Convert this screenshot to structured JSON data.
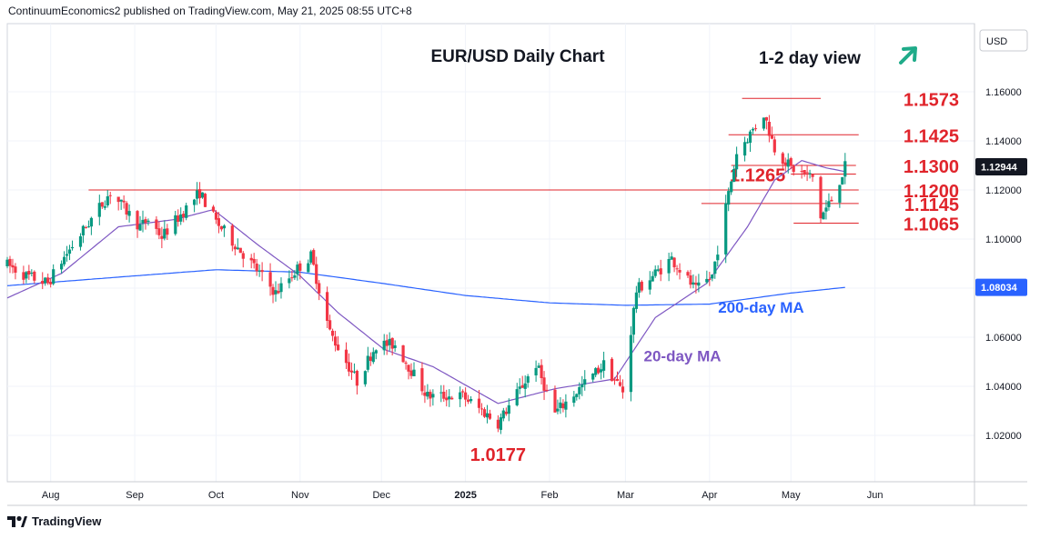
{
  "attribution": "ContinuumEconomics2 published on TradingView.com, May 21, 2025 08:55 UTC+8",
  "footer": {
    "brand": "TradingView"
  },
  "currency": "USD",
  "colors": {
    "up": "#089981",
    "down": "#f23645",
    "ma20": "#7e57c2",
    "ma200": "#2962ff",
    "level": "#e0242b",
    "arrow": "#1fab89",
    "priceTag": "#131722",
    "maTag": "#2962ff"
  },
  "chart_data": {
    "type": "candlestick",
    "title": "EUR/USD Daily Chart",
    "view_label": "1-2 day view",
    "view_direction": "up",
    "ylim": [
      1.0,
      1.17
    ],
    "xlim": [
      "2025-07-16",
      "2025-06-16"
    ],
    "y_ticks": [
      "1.16000",
      "1.14000",
      "1.12000",
      "1.10000",
      "1.08000",
      "1.06000",
      "1.04000",
      "1.02000"
    ],
    "x_ticks": [
      {
        "label": "Aug",
        "date": "2024-08-01"
      },
      {
        "label": "Sep",
        "date": "2024-09-01"
      },
      {
        "label": "Oct",
        "date": "2024-10-01"
      },
      {
        "label": "Nov",
        "date": "2024-11-01"
      },
      {
        "label": "Dec",
        "date": "2024-12-01"
      },
      {
        "label": "2025",
        "date": "2025-01-01",
        "bold": true
      },
      {
        "label": "Feb",
        "date": "2025-02-01"
      },
      {
        "label": "Mar",
        "date": "2025-03-01"
      },
      {
        "label": "Apr",
        "date": "2025-04-01"
      },
      {
        "label": "May",
        "date": "2025-05-01"
      },
      {
        "label": "Jun",
        "date": "2025-06-01"
      }
    ],
    "current_price": {
      "label": "1.12944",
      "value": 1.12944
    },
    "ma200_tag": {
      "label": "1.08034",
      "value": 1.08034
    },
    "price_anchors": [
      [
        "2024-07-16",
        1.0895
      ],
      [
        "2024-07-23",
        1.085
      ],
      [
        "2024-07-31",
        1.082
      ],
      [
        "2024-08-05",
        1.091
      ],
      [
        "2024-08-23",
        1.119
      ],
      [
        "2024-09-03",
        1.105
      ],
      [
        "2024-09-06",
        1.108
      ],
      [
        "2024-09-11",
        1.101
      ],
      [
        "2024-09-25",
        1.119
      ],
      [
        "2024-10-01",
        1.107
      ],
      [
        "2024-10-11",
        1.094
      ],
      [
        "2024-10-23",
        1.078
      ],
      [
        "2024-10-31",
        1.088
      ],
      [
        "2024-11-05",
        1.093
      ],
      [
        "2024-11-12",
        1.062
      ],
      [
        "2024-11-22",
        1.042
      ],
      [
        "2024-11-29",
        1.057
      ],
      [
        "2024-12-06",
        1.057
      ],
      [
        "2024-12-18",
        1.036
      ],
      [
        "2024-12-31",
        1.036
      ],
      [
        "2025-01-13",
        1.025
      ],
      [
        "2025-01-27",
        1.049
      ],
      [
        "2025-02-03",
        1.029
      ],
      [
        "2025-02-21",
        1.049
      ],
      [
        "2025-02-28",
        1.038
      ],
      [
        "2025-03-05",
        1.079
      ],
      [
        "2025-03-18",
        1.092
      ],
      [
        "2025-03-27",
        1.079
      ],
      [
        "2025-04-02",
        1.085
      ],
      [
        "2025-04-11",
        1.135
      ],
      [
        "2025-04-21",
        1.151
      ],
      [
        "2025-04-25",
        1.137
      ],
      [
        "2025-05-01",
        1.129
      ],
      [
        "2025-05-09",
        1.125
      ],
      [
        "2025-05-12",
        1.109
      ],
      [
        "2025-05-16",
        1.116
      ],
      [
        "2025-05-21",
        1.1294
      ]
    ],
    "ma20_anchors": [
      [
        "2024-07-16",
        1.076
      ],
      [
        "2024-08-05",
        1.086
      ],
      [
        "2024-08-26",
        1.105
      ],
      [
        "2024-09-16",
        1.108
      ],
      [
        "2024-09-30",
        1.112
      ],
      [
        "2024-10-16",
        1.098
      ],
      [
        "2024-11-01",
        1.085
      ],
      [
        "2024-11-15",
        1.07
      ],
      [
        "2024-12-02",
        1.055
      ],
      [
        "2024-12-20",
        1.048
      ],
      [
        "2025-01-13",
        1.033
      ],
      [
        "2025-02-03",
        1.039
      ],
      [
        "2025-02-25",
        1.043
      ],
      [
        "2025-03-12",
        1.068
      ],
      [
        "2025-03-31",
        1.082
      ],
      [
        "2025-04-15",
        1.105
      ],
      [
        "2025-04-25",
        1.124
      ],
      [
        "2025-05-05",
        1.132
      ],
      [
        "2025-05-14",
        1.129
      ],
      [
        "2025-05-21",
        1.1275
      ]
    ],
    "ma200_anchors": [
      [
        "2024-07-16",
        1.081
      ],
      [
        "2024-09-01",
        1.085
      ],
      [
        "2024-10-01",
        1.0875
      ],
      [
        "2024-11-01",
        1.0865
      ],
      [
        "2024-12-01",
        1.082
      ],
      [
        "2025-01-01",
        1.077
      ],
      [
        "2025-02-01",
        1.074
      ],
      [
        "2025-03-01",
        1.073
      ],
      [
        "2025-04-01",
        1.0735
      ],
      [
        "2025-05-01",
        1.078
      ],
      [
        "2025-05-21",
        1.0803
      ]
    ],
    "levels": [
      {
        "label": "1.1573",
        "value": 1.1573,
        "from": "2025-04-13",
        "to": "2025-05-12",
        "label_side": "right"
      },
      {
        "label": "1.1425",
        "value": 1.1425,
        "from": "2025-04-08",
        "to": "2025-05-26",
        "label_side": "right"
      },
      {
        "label": "1.1300",
        "value": 1.13,
        "from": "2025-04-09",
        "to": "2025-05-25",
        "label_side": "right"
      },
      {
        "label": "1.1265",
        "value": 1.1265,
        "from": "2025-05-01",
        "to": "2025-05-25",
        "label_side": "left"
      },
      {
        "label": "1.1200",
        "value": 1.12,
        "from": "2024-08-15",
        "to": "2025-05-26",
        "label_side": "right"
      },
      {
        "label": "1.1145",
        "value": 1.1145,
        "from": "2025-03-29",
        "to": "2025-05-26",
        "label_side": "right"
      },
      {
        "label": "1.1065",
        "value": 1.1065,
        "from": "2025-05-02",
        "to": "2025-05-26",
        "label_side": "right"
      }
    ],
    "annotations": [
      {
        "text": "1.0177",
        "date": "2025-01-13",
        "value": 1.0177,
        "color": "#e0242b"
      },
      {
        "text": "20-day MA",
        "date": "2025-03-22",
        "value": 1.052,
        "color": "#7e57c2"
      },
      {
        "text": "200-day MA",
        "date": "2025-04-20",
        "value": 1.0718,
        "color": "#2962ff"
      }
    ],
    "series": [
      {
        "name": "EUR/USD",
        "kind": "candles"
      },
      {
        "name": "20-day MA",
        "kind": "line"
      },
      {
        "name": "200-day MA",
        "kind": "line"
      }
    ]
  }
}
